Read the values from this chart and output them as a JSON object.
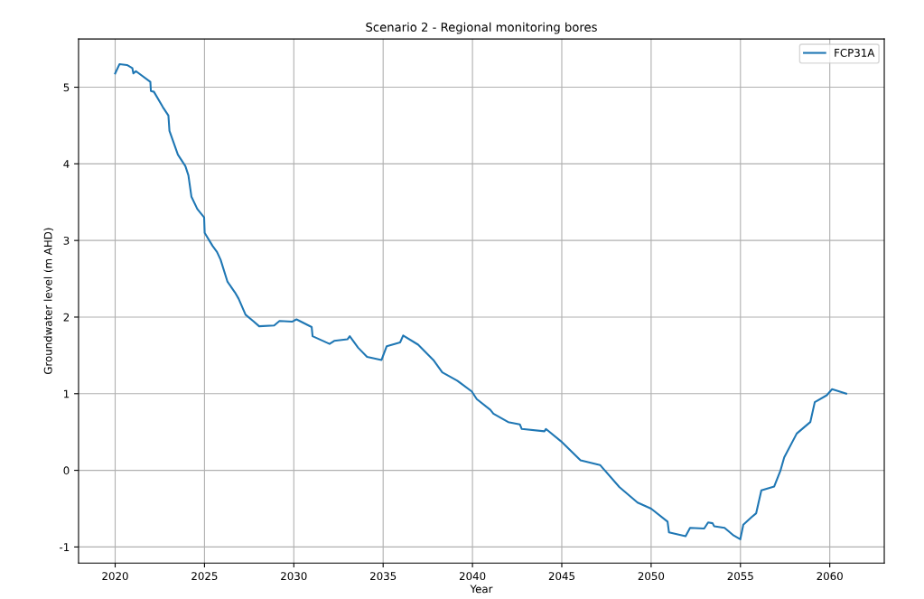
{
  "chart_data": {
    "type": "line",
    "title": "Scenario 2 - Regional monitoring bores",
    "xlabel": "Year",
    "ylabel": "Groundwater level (m AHD)",
    "xlim": [
      2017.95,
      2063.05
    ],
    "ylim": [
      -1.21,
      5.63
    ],
    "xticks": [
      2020,
      2025,
      2030,
      2035,
      2040,
      2045,
      2050,
      2055,
      2060
    ],
    "yticks": [
      -1,
      0,
      1,
      2,
      3,
      4,
      5
    ],
    "grid": true,
    "legend": "top right",
    "line_style": "solid",
    "marker": "none",
    "series": [
      {
        "name": "FCP31A",
        "color": "#1f77b4",
        "x": [
          2020.0,
          2020.24,
          2020.66,
          2020.96,
          2021.02,
          2021.16,
          2021.97,
          2022.0,
          2022.17,
          2022.67,
          2022.98,
          2023.04,
          2023.51,
          2023.93,
          2024.1,
          2024.27,
          2024.6,
          2024.98,
          2025.01,
          2025.45,
          2025.7,
          2025.9,
          2026.29,
          2026.71,
          2026.91,
          2027.3,
          2027.72,
          2028.06,
          2028.9,
          2029.2,
          2029.9,
          2030.15,
          2031.0,
          2031.05,
          2032.0,
          2032.26,
          2033.0,
          2033.13,
          2033.6,
          2034.1,
          2034.91,
          2035.2,
          2035.95,
          2036.12,
          2036.96,
          2037.81,
          2038.31,
          2039.15,
          2039.96,
          2040.24,
          2041.0,
          2041.17,
          2042.0,
          2042.65,
          2042.76,
          2044.03,
          2044.11,
          2044.95,
          2046.05,
          2047.14,
          2048.23,
          2049.24,
          2050.0,
          2050.92,
          2051.0,
          2051.93,
          2052.18,
          2052.97,
          2053.19,
          2053.44,
          2053.53,
          2054.11,
          2054.62,
          2054.99,
          2055.16,
          2055.63,
          2055.88,
          2056.17,
          2056.89,
          2057.23,
          2057.45,
          2058.15,
          2058.91,
          2059.16,
          2059.83,
          2060.13,
          2060.92
        ],
        "values": [
          5.18,
          5.3,
          5.29,
          5.25,
          5.18,
          5.21,
          5.07,
          4.95,
          4.94,
          4.74,
          4.63,
          4.43,
          4.12,
          3.97,
          3.85,
          3.57,
          3.41,
          3.3,
          3.1,
          2.93,
          2.85,
          2.75,
          2.46,
          2.32,
          2.24,
          2.03,
          1.95,
          1.88,
          1.89,
          1.95,
          1.94,
          1.97,
          1.87,
          1.75,
          1.65,
          1.69,
          1.71,
          1.75,
          1.6,
          1.48,
          1.44,
          1.62,
          1.67,
          1.76,
          1.64,
          1.44,
          1.28,
          1.17,
          1.03,
          0.93,
          0.79,
          0.74,
          0.63,
          0.6,
          0.54,
          0.51,
          0.54,
          0.38,
          0.13,
          0.07,
          -0.22,
          -0.42,
          -0.5,
          -0.67,
          -0.81,
          -0.86,
          -0.75,
          -0.76,
          -0.68,
          -0.69,
          -0.73,
          -0.75,
          -0.85,
          -0.9,
          -0.71,
          -0.61,
          -0.56,
          -0.26,
          -0.21,
          -0.01,
          0.17,
          0.48,
          0.63,
          0.89,
          0.98,
          1.06,
          1.0
        ]
      }
    ]
  }
}
